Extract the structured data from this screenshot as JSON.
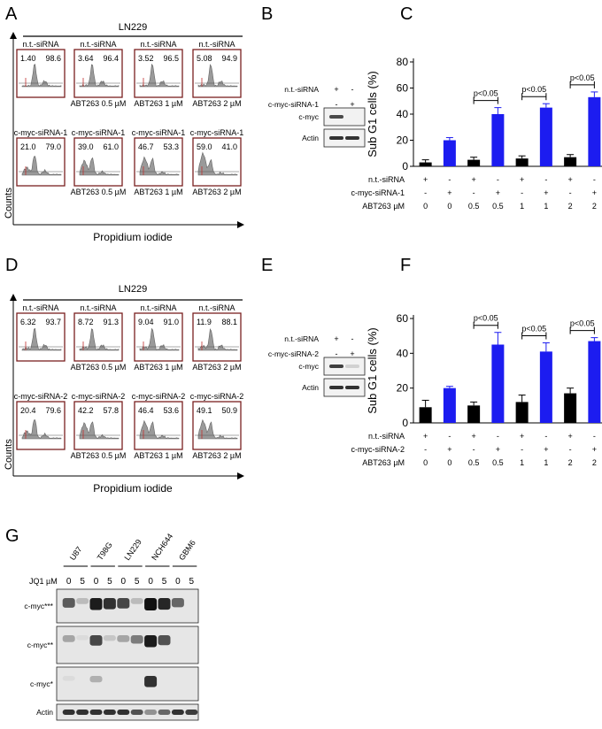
{
  "panels": {
    "A": "A",
    "B": "B",
    "C": "C",
    "D": "D",
    "E": "E",
    "F": "F",
    "G": "G"
  },
  "colors": {
    "blue": "#1c1cf0",
    "black": "#000000",
    "gray": "#8c8c8c",
    "red": "#c0302f"
  },
  "flow": [
    {
      "cell_line": "LN229",
      "ylabel": "Counts",
      "xlabel": "Propidium iodide",
      "row1": [
        {
          "top": "n.t.-siRNA",
          "bottom": "",
          "left": "1.40",
          "right": "98.6"
        },
        {
          "top": "n.t.-siRNA",
          "bottom": "ABT263 0.5 µM",
          "left": "3.64",
          "right": "96.4"
        },
        {
          "top": "n.t.-siRNA",
          "bottom": "ABT263 1 µM",
          "left": "3.52",
          "right": "96.5"
        },
        {
          "top": "n.t.-siRNA",
          "bottom": "ABT263 2 µM",
          "left": "5.08",
          "right": "94.9"
        }
      ],
      "row2": [
        {
          "top": "c-myc-siRNA-1",
          "bottom": "",
          "left": "21.0",
          "right": "79.0"
        },
        {
          "top": "c-myc-siRNA-1",
          "bottom": "ABT263 0.5 µM",
          "left": "39.0",
          "right": "61.0"
        },
        {
          "top": "c-myc-siRNA-1",
          "bottom": "ABT263 1 µM",
          "left": "46.7",
          "right": "53.3"
        },
        {
          "top": "c-myc-siRNA-1",
          "bottom": "ABT263 2 µM",
          "left": "59.0",
          "right": "41.0"
        }
      ]
    },
    {
      "cell_line": "LN229",
      "ylabel": "Counts",
      "xlabel": "Propidium iodide",
      "row1": [
        {
          "top": "n.t.-siRNA",
          "bottom": "",
          "left": "6.32",
          "right": "93.7"
        },
        {
          "top": "n.t.-siRNA",
          "bottom": "ABT263 0.5 µM",
          "left": "8.72",
          "right": "91.3"
        },
        {
          "top": "n.t.-siRNA",
          "bottom": "ABT263 1 µM",
          "left": "9.04",
          "right": "91.0"
        },
        {
          "top": "n.t.-siRNA",
          "bottom": "ABT263 2 µM",
          "left": "11.9",
          "right": "88.1"
        }
      ],
      "row2": [
        {
          "top": "c-myc-siRNA-2",
          "bottom": "",
          "left": "20.4",
          "right": "79.6"
        },
        {
          "top": "c-myc-siRNA-2",
          "bottom": "ABT263 0.5 µM",
          "left": "42.2",
          "right": "57.8"
        },
        {
          "top": "c-myc-siRNA-2",
          "bottom": "ABT263 1 µM",
          "left": "46.4",
          "right": "53.6"
        },
        {
          "top": "c-myc-siRNA-2",
          "bottom": "ABT263 2 µM",
          "left": "49.1",
          "right": "50.9"
        }
      ]
    }
  ],
  "blots_small": [
    {
      "rows": [
        {
          "label": "n.t.-siRNA",
          "signs": [
            "+",
            "-"
          ]
        },
        {
          "label": "c-myc-siRNA-1",
          "signs": [
            "-",
            "+"
          ]
        }
      ],
      "bands": [
        {
          "label": "c-myc",
          "lanes": [
            0.75,
            0.0
          ]
        },
        {
          "label": "Actin",
          "lanes": [
            0.85,
            0.85
          ]
        }
      ]
    },
    {
      "rows": [
        {
          "label": "n.t.-siRNA",
          "signs": [
            "+",
            "-"
          ]
        },
        {
          "label": "c-myc-siRNA-2",
          "signs": [
            "-",
            "+"
          ]
        }
      ],
      "bands": [
        {
          "label": "c-myc",
          "lanes": [
            0.8,
            0.15
          ]
        },
        {
          "label": "Actin",
          "lanes": [
            0.85,
            0.85
          ]
        }
      ]
    }
  ],
  "chart_data": [
    {
      "type": "bar",
      "title": "",
      "ylabel": "Sub G1 cells (%)",
      "ylim": [
        0,
        80
      ],
      "yticks": [
        0,
        20,
        40,
        60,
        80
      ],
      "colors": [
        "black",
        "blue",
        "black",
        "blue",
        "black",
        "blue",
        "black",
        "blue"
      ],
      "values": [
        3,
        20,
        5,
        40,
        6,
        45,
        7,
        53
      ],
      "errors": [
        2,
        2,
        2,
        5,
        2,
        3,
        2,
        4
      ],
      "sig": [
        {
          "from": 2,
          "to": 3,
          "label": "p<0.05"
        },
        {
          "from": 4,
          "to": 5,
          "label": "p<0.05"
        },
        {
          "from": 6,
          "to": 7,
          "label": "p<0.05"
        }
      ],
      "table": [
        {
          "label": "n.t.-siRNA",
          "cells": [
            "+",
            "-",
            "+",
            "-",
            "+",
            "-",
            "+",
            "-"
          ]
        },
        {
          "label": "c-myc-siRNA-1",
          "cells": [
            "-",
            "+",
            "-",
            "+",
            "-",
            "+",
            "-",
            "+"
          ]
        },
        {
          "label": "ABT263  µM",
          "cells": [
            "0",
            "0",
            "0.5",
            "0.5",
            "1",
            "1",
            "2",
            "2"
          ]
        }
      ]
    },
    {
      "type": "bar",
      "title": "",
      "ylabel": "Sub G1 cells (%)",
      "ylim": [
        0,
        60
      ],
      "yticks": [
        0,
        20,
        40,
        60
      ],
      "colors": [
        "black",
        "blue",
        "black",
        "blue",
        "black",
        "blue",
        "black",
        "blue"
      ],
      "values": [
        9,
        20,
        10,
        45,
        12,
        41,
        17,
        47
      ],
      "errors": [
        4,
        1,
        2,
        7,
        4,
        5,
        3,
        2
      ],
      "sig": [
        {
          "from": 2,
          "to": 3,
          "label": "p<0.05"
        },
        {
          "from": 4,
          "to": 5,
          "label": "p<0.05"
        },
        {
          "from": 6,
          "to": 7,
          "label": "p<0.05"
        }
      ],
      "table": [
        {
          "label": "n.t.-siRNA",
          "cells": [
            "+",
            "-",
            "+",
            "-",
            "+",
            "-",
            "+",
            "-"
          ]
        },
        {
          "label": "c-myc-siRNA-2",
          "cells": [
            "-",
            "+",
            "-",
            "+",
            "-",
            "+",
            "-",
            "+"
          ]
        },
        {
          "label": "ABT263  µM",
          "cells": [
            "0",
            "0",
            "0.5",
            "0.5",
            "1",
            "1",
            "2",
            "2"
          ]
        }
      ]
    }
  ],
  "blot_g": {
    "cell_lines": [
      "U87",
      "T98G",
      "LN229",
      "NCH644",
      "GBM6"
    ],
    "treatment_label": "JQ1 µM",
    "doses": [
      "0",
      "5",
      "0",
      "5",
      "0",
      "5",
      "0",
      "5",
      "0",
      "5"
    ],
    "panels": [
      {
        "label": "c-myc***",
        "lanes": [
          0.65,
          0.2,
          0.95,
          0.85,
          0.75,
          0.2,
          1.0,
          0.9,
          0.6,
          0.0
        ]
      },
      {
        "label": "c-myc**",
        "lanes": [
          0.3,
          0.05,
          0.75,
          0.15,
          0.3,
          0.5,
          0.95,
          0.7,
          0.0,
          0.0
        ]
      },
      {
        "label": "c-myc*",
        "lanes": [
          0.05,
          0.0,
          0.25,
          0.0,
          0.0,
          0.0,
          0.85,
          0.0,
          0.0,
          0.0
        ]
      },
      {
        "label": "Actin",
        "lanes": [
          0.85,
          0.85,
          0.85,
          0.85,
          0.85,
          0.7,
          0.4,
          0.6,
          0.85,
          0.8
        ]
      }
    ]
  }
}
